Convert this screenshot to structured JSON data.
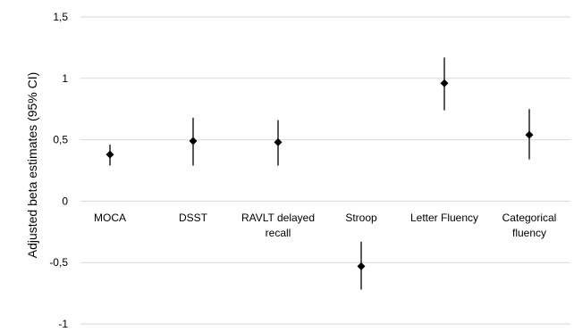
{
  "chart_data": {
    "type": "scatter",
    "subtype": "point-estimate-with-95ci",
    "title": "",
    "xlabel": "",
    "ylabel": "Adjusted beta estimates (95% CI)",
    "ylim": [
      -1,
      1.5
    ],
    "y_ticks": [
      {
        "value": 1.5,
        "label": "1,5"
      },
      {
        "value": 1,
        "label": "1"
      },
      {
        "value": 0.5,
        "label": "0,5"
      },
      {
        "value": 0,
        "label": "0"
      },
      {
        "value": -0.5,
        "label": "-0,5"
      },
      {
        "value": -1,
        "label": "-1"
      }
    ],
    "grid": true,
    "legend": "none",
    "categories": [
      {
        "lines": [
          "MOCA"
        ]
      },
      {
        "lines": [
          "DSST"
        ]
      },
      {
        "lines": [
          "RAVLT delayed",
          "recall"
        ]
      },
      {
        "lines": [
          "Stroop"
        ]
      },
      {
        "lines": [
          "Letter Fluency"
        ]
      },
      {
        "lines": [
          "Categorical",
          "fluency"
        ]
      }
    ],
    "values": [
      0.38,
      0.49,
      0.48,
      -0.53,
      0.96,
      0.54
    ],
    "ci_lower": [
      0.29,
      0.29,
      0.29,
      -0.72,
      0.74,
      0.34
    ],
    "ci_upper": [
      0.46,
      0.68,
      0.66,
      -0.33,
      1.17,
      0.75
    ],
    "colors": {
      "marker": "#000000",
      "grid": "#d9d9d9",
      "text": "#000000"
    }
  }
}
